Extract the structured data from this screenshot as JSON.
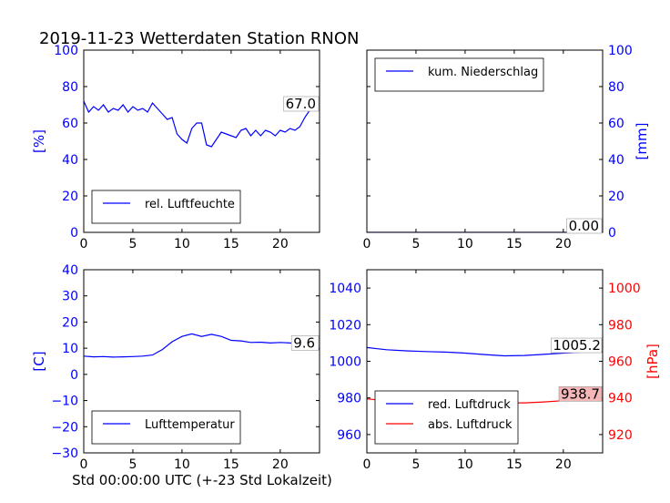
{
  "figure": {
    "title": "2019-11-23 Wetterdaten Station RNON",
    "xlabel": "Std 00:00:00 UTC (+-23 Std Lokalzeit)"
  },
  "colors": {
    "blue": "#0000ff",
    "red": "#ff0000",
    "black": "#000000"
  },
  "chart_data": [
    {
      "id": "humidity",
      "type": "line",
      "ylabel": "[%]",
      "xlim": [
        0,
        24
      ],
      "ylim": [
        0,
        100
      ],
      "xticks": [
        0,
        5,
        10,
        15,
        20
      ],
      "yticks": [
        0,
        20,
        40,
        60,
        80,
        100
      ],
      "legend_position": "lower-left",
      "last_value_label": "67.0",
      "series": [
        {
          "name": "rel. Luftfeuchte",
          "color": "#0000ff",
          "x": [
            0,
            0.5,
            1,
            1.5,
            2,
            2.5,
            3,
            3.5,
            4,
            4.5,
            5,
            5.5,
            6,
            6.5,
            7,
            7.5,
            8,
            8.5,
            9,
            9.5,
            10,
            10.5,
            11,
            11.5,
            12,
            12.5,
            13,
            13.5,
            14,
            14.5,
            15,
            15.5,
            16,
            16.5,
            17,
            17.5,
            18,
            18.5,
            19,
            19.5,
            20,
            20.5,
            21,
            21.5,
            22,
            22.5,
            23,
            23.5
          ],
          "values": [
            72,
            66,
            69,
            67,
            70,
            66,
            68,
            67,
            70,
            66,
            69,
            67,
            68,
            66,
            71,
            68,
            65,
            62,
            63,
            54,
            51,
            49,
            57,
            60,
            60,
            48,
            47,
            51,
            55,
            54,
            53,
            52,
            56,
            57,
            53,
            56,
            53,
            56,
            55,
            53,
            56,
            55,
            57,
            56,
            58,
            63,
            67,
            67
          ]
        }
      ]
    },
    {
      "id": "precipitation",
      "type": "line",
      "ylabel": "[mm]",
      "xlim": [
        0,
        24
      ],
      "ylim": [
        0,
        100
      ],
      "xticks": [
        0,
        5,
        10,
        15,
        20
      ],
      "yticks": [
        0,
        20,
        40,
        60,
        80,
        100
      ],
      "legend_position": "upper-left",
      "last_value_label": "0.00",
      "series": [
        {
          "name": "kum. Niederschlag",
          "color": "#0000ff",
          "x": [
            0,
            24
          ],
          "values": [
            0,
            0
          ]
        }
      ]
    },
    {
      "id": "temperature",
      "type": "line",
      "ylabel": "[C]",
      "xlim": [
        0,
        24
      ],
      "ylim": [
        -30,
        40
      ],
      "xticks": [
        0,
        5,
        10,
        15,
        20
      ],
      "yticks": [
        -30,
        -20,
        -10,
        0,
        10,
        20,
        30,
        40
      ],
      "legend_position": "lower-left",
      "last_value_label": "9.6",
      "series": [
        {
          "name": "Lufttemperatur",
          "color": "#0000ff",
          "x": [
            0,
            1,
            2,
            3,
            4,
            5,
            6,
            7,
            8,
            9,
            10,
            11,
            12,
            13,
            14,
            15,
            16,
            17,
            18,
            19,
            20,
            21,
            22,
            23,
            24
          ],
          "values": [
            7,
            6.7,
            6.8,
            6.6,
            6.7,
            6.8,
            7.0,
            7.4,
            9.5,
            12.5,
            14.5,
            15.5,
            14.5,
            15.3,
            14.5,
            13,
            12.8,
            12.2,
            12.3,
            12.0,
            12.2,
            12.0,
            11.3,
            10.2,
            9.6
          ]
        }
      ]
    },
    {
      "id": "pressure",
      "type": "line",
      "ylabel": "[hPa]",
      "xlim": [
        0,
        24
      ],
      "ylim": [
        950,
        1050
      ],
      "ylim_right": [
        910,
        1010
      ],
      "xticks": [
        0,
        5,
        10,
        15,
        20
      ],
      "yticks": [
        960,
        980,
        1000,
        1020,
        1040
      ],
      "yticks_right": [
        920,
        940,
        960,
        980,
        1000
      ],
      "legend_position": "lower-left",
      "series": [
        {
          "name": "red. Luftdruck",
          "color": "#0000ff",
          "axis": "left",
          "last_value_label": "1005.2",
          "x": [
            0,
            2,
            4,
            6,
            8,
            10,
            12,
            14,
            16,
            18,
            20,
            22,
            24
          ],
          "values": [
            1007.5,
            1006.3,
            1005.7,
            1005.3,
            1005.0,
            1004.5,
            1003.7,
            1003.0,
            1003.2,
            1003.8,
            1004.5,
            1005.0,
            1005.2
          ]
        },
        {
          "name": "abs. Luftdruck",
          "color": "#ff0000",
          "axis": "right",
          "last_value_label": "938.7",
          "x": [
            0,
            2,
            4,
            6,
            8,
            10,
            11,
            12,
            14,
            16,
            18,
            20,
            22,
            24
          ],
          "values": [
            939.5,
            938.4,
            938.0,
            937.5,
            937.6,
            938.5,
            938.6,
            937.4,
            937.3,
            937.3,
            937.8,
            938.5,
            938.7,
            938.7
          ]
        }
      ]
    }
  ]
}
